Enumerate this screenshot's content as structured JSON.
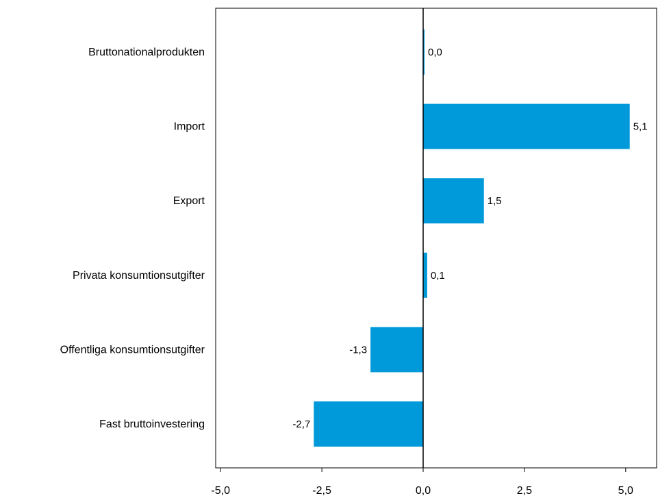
{
  "chart_data": {
    "type": "bar",
    "orientation": "horizontal",
    "title": "",
    "xlabel": "",
    "ylabel": "",
    "categories": [
      "Bruttonationalprodukten",
      "Import",
      "Export",
      "Privata konsumtionsutgifter",
      "Offentliga konsumtionsutgifter",
      "Fast bruttoinvestering"
    ],
    "values": [
      0.0,
      5.1,
      1.5,
      0.1,
      -1.3,
      -2.7
    ],
    "value_labels": [
      "0,0",
      "5,1",
      "1,5",
      "0,1",
      "-1,3",
      "-2,7"
    ],
    "xlim": [
      -5.0,
      5.0
    ],
    "xticks": [
      -5.0,
      -2.5,
      0.0,
      2.5,
      5.0
    ],
    "xtick_labels": [
      "-5,0",
      "-2,5",
      "0,0",
      "2,5",
      "5,0"
    ],
    "grid": false,
    "legend": "none",
    "bar_color": "#009ADA"
  }
}
